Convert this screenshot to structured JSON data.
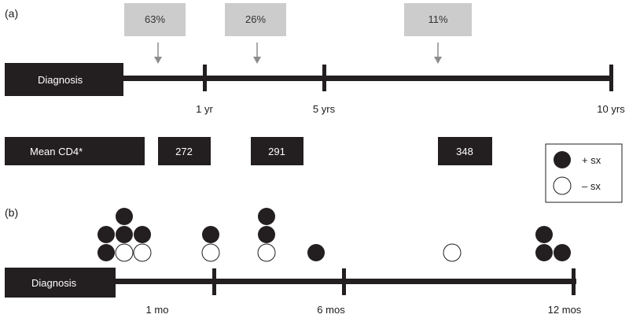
{
  "panels": {
    "a": {
      "label": "(a)",
      "percentages": [
        "63%",
        "26%",
        "11%"
      ],
      "diagnosis_label": "Diagnosis",
      "timeline_ticks": [
        "1 yr",
        "5 yrs",
        "10 yrs"
      ],
      "cd4_label": "Mean CD4*",
      "cd4_values": [
        "272",
        "291",
        "348"
      ]
    },
    "b": {
      "label": "(b)",
      "diagnosis_label": "Diagnosis",
      "timeline_ticks": [
        "1 mo",
        "6 mos",
        "12 mos"
      ],
      "circle_groups": [
        {
          "filled": 5,
          "open": 2
        },
        {
          "filled": 1,
          "open": 1
        },
        {
          "filled": 2,
          "open": 1
        },
        {
          "filled": 1,
          "open": 0
        },
        {
          "filled": 0,
          "open": 1
        },
        {
          "filled": 3,
          "open": 0
        }
      ]
    }
  },
  "legend": {
    "filled_label": "+ sx",
    "open_label": "– sx"
  },
  "colors": {
    "bar": "#231f20",
    "pct_box": "#cccccc",
    "arrow": "#8c8c8c"
  }
}
